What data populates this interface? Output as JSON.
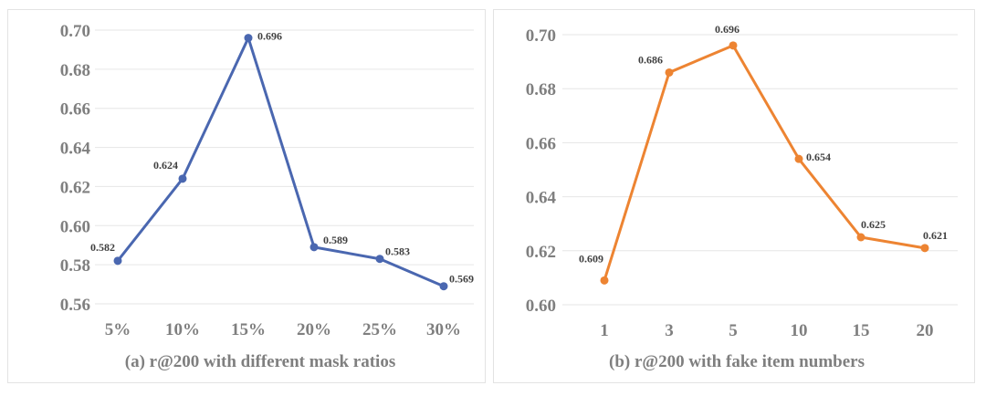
{
  "chart_data": [
    {
      "type": "line",
      "title": "(a) r@200 with different mask ratios",
      "categories": [
        "5%",
        "10%",
        "15%",
        "20%",
        "25%",
        "30%"
      ],
      "series": [
        {
          "values": [
            0.582,
            0.624,
            0.696,
            0.589,
            0.583,
            0.569
          ],
          "color": "#4a67b0"
        }
      ],
      "data_labels": [
        "0.582",
        "0.624",
        "0.696",
        "0.589",
        "0.583",
        "0.569"
      ],
      "ylim": [
        0.56,
        0.7
      ],
      "yticks": [
        0.56,
        0.58,
        0.6,
        0.62,
        0.64,
        0.66,
        0.68,
        0.7
      ],
      "ytick_labels": [
        "0.56",
        "0.58",
        "0.60",
        "0.62",
        "0.64",
        "0.66",
        "0.68",
        "0.70"
      ],
      "grid": true
    },
    {
      "type": "line",
      "title": "(b) r@200 with fake item numbers",
      "categories": [
        "1",
        "3",
        "5",
        "10",
        "15",
        "20"
      ],
      "series": [
        {
          "values": [
            0.609,
            0.686,
            0.696,
            0.654,
            0.625,
            0.621
          ],
          "color": "#ed8432"
        }
      ],
      "data_labels": [
        "0.609",
        "0.686",
        "0.696",
        "0.654",
        "0.625",
        "0.621"
      ],
      "ylim": [
        0.6,
        0.7
      ],
      "yticks": [
        0.6,
        0.62,
        0.64,
        0.66,
        0.68,
        0.7
      ],
      "ytick_labels": [
        "0.60",
        "0.62",
        "0.64",
        "0.66",
        "0.68",
        "0.70"
      ],
      "grid": true
    }
  ]
}
